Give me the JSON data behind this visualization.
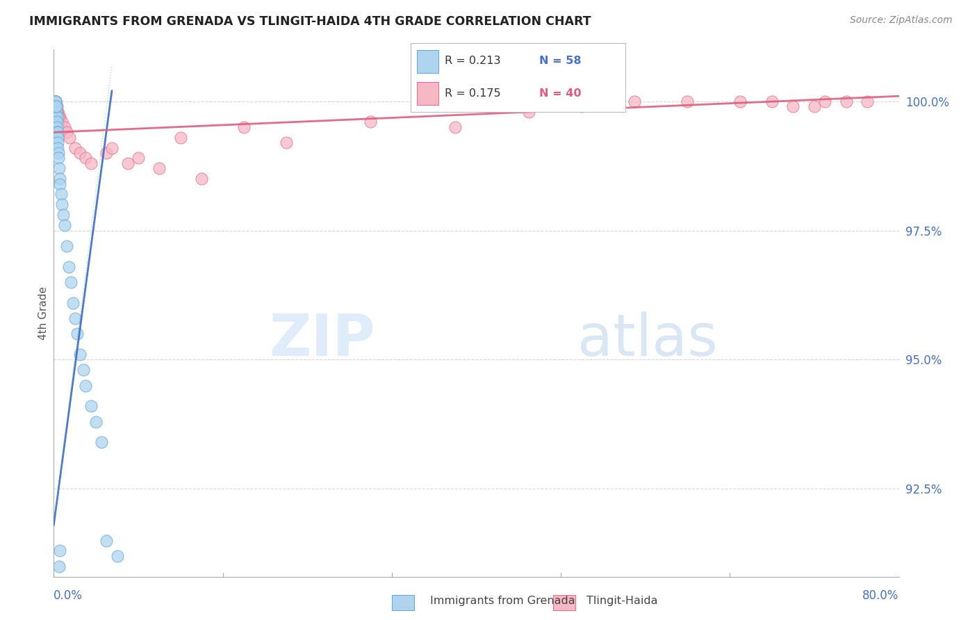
{
  "title": "IMMIGRANTS FROM GRENADA VS TLINGIT-HAIDA 4TH GRADE CORRELATION CHART",
  "source": "Source: ZipAtlas.com",
  "ylabel": "4th Grade",
  "ytick_values": [
    92.5,
    95.0,
    97.5,
    100.0
  ],
  "ytick_labels": [
    "92.5%",
    "95.0%",
    "97.5%",
    "100.0%"
  ],
  "xlim": [
    0.0,
    80.0
  ],
  "ylim": [
    90.8,
    101.0
  ],
  "legend_r1": "R = 0.213",
  "legend_n1": "N = 58",
  "legend_r2": "R = 0.175",
  "legend_n2": "N = 40",
  "blue_line_color": "#3a6bbf",
  "pink_line_color": "#e05c7a",
  "blue_dot_facecolor": "#aed4ef",
  "blue_dot_edgecolor": "#6aaad4",
  "pink_dot_facecolor": "#f5b8c4",
  "pink_dot_edgecolor": "#e87090",
  "grid_color": "#cccccc",
  "title_color": "#222222",
  "axis_label_color": "#4472c4",
  "background_color": "#ffffff",
  "blue_x": [
    0.05,
    0.05,
    0.07,
    0.08,
    0.1,
    0.1,
    0.12,
    0.12,
    0.14,
    0.15,
    0.15,
    0.17,
    0.18,
    0.2,
    0.2,
    0.22,
    0.22,
    0.25,
    0.25,
    0.28,
    0.3,
    0.3,
    0.32,
    0.35,
    0.35,
    0.38,
    0.4,
    0.42,
    0.45,
    0.5,
    0.55,
    0.6,
    0.7,
    0.8,
    0.9,
    1.0,
    1.2,
    1.4,
    1.6,
    1.8,
    2.0,
    2.2,
    2.5,
    2.8,
    3.0,
    3.5,
    4.0,
    4.5,
    0.06,
    0.08,
    0.1,
    0.15,
    0.2,
    0.25,
    5.0,
    6.0,
    0.5,
    0.6
  ],
  "blue_y": [
    100.0,
    100.0,
    100.0,
    100.0,
    100.0,
    100.0,
    100.0,
    100.0,
    99.9,
    100.0,
    99.9,
    99.9,
    100.0,
    99.8,
    99.9,
    99.8,
    99.7,
    99.8,
    99.6,
    99.7,
    99.6,
    99.5,
    99.4,
    99.4,
    99.3,
    99.2,
    99.1,
    99.0,
    98.9,
    98.7,
    98.5,
    98.4,
    98.2,
    98.0,
    97.8,
    97.6,
    97.2,
    96.8,
    96.5,
    96.1,
    95.8,
    95.5,
    95.1,
    94.8,
    94.5,
    94.1,
    93.8,
    93.4,
    100.0,
    100.0,
    100.0,
    100.0,
    99.9,
    99.9,
    91.5,
    91.2,
    91.0,
    91.3
  ],
  "pink_x": [
    0.1,
    0.15,
    0.2,
    0.25,
    0.3,
    0.35,
    0.4,
    0.5,
    0.6,
    0.8,
    1.0,
    1.2,
    1.5,
    2.0,
    2.5,
    3.0,
    3.5,
    5.0,
    7.0,
    10.0,
    14.0,
    18.0,
    22.0,
    5.5,
    8.0,
    50.0,
    55.0,
    60.0,
    65.0,
    68.0,
    70.0,
    72.0,
    73.0,
    75.0,
    77.0,
    45.0,
    12.0,
    30.0,
    38.0,
    0.45
  ],
  "pink_y": [
    100.0,
    100.0,
    100.0,
    99.9,
    99.9,
    99.8,
    99.8,
    99.7,
    99.7,
    99.6,
    99.5,
    99.4,
    99.3,
    99.1,
    99.0,
    98.9,
    98.8,
    99.0,
    98.8,
    98.7,
    98.5,
    99.5,
    99.2,
    99.1,
    98.9,
    99.9,
    100.0,
    100.0,
    100.0,
    100.0,
    99.9,
    99.9,
    100.0,
    100.0,
    100.0,
    99.8,
    99.3,
    99.6,
    99.5,
    99.7
  ],
  "blue_trendline_x0": 0.0,
  "blue_trendline_x1": 5.5,
  "blue_trendline_y0": 91.8,
  "blue_trendline_y1": 100.2,
  "pink_trendline_x0": 0.0,
  "pink_trendline_x1": 80.0,
  "pink_trendline_y0": 99.4,
  "pink_trendline_y1": 100.1
}
